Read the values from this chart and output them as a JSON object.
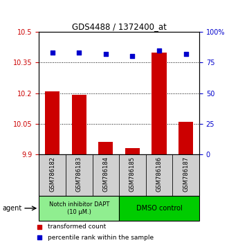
{
  "title": "GDS4488 / 1372400_at",
  "samples": [
    "GSM786182",
    "GSM786183",
    "GSM786184",
    "GSM786185",
    "GSM786186",
    "GSM786187"
  ],
  "bar_values": [
    10.21,
    10.19,
    9.96,
    9.93,
    10.4,
    10.06
  ],
  "dot_values": [
    83,
    83,
    82,
    80,
    85,
    82
  ],
  "ylim_left": [
    9.9,
    10.5
  ],
  "ylim_right": [
    0,
    100
  ],
  "yticks_left": [
    9.9,
    10.05,
    10.2,
    10.35,
    10.5
  ],
  "ytick_labels_left": [
    "9.9",
    "10.05",
    "10.2",
    "10.35",
    "10.5"
  ],
  "yticks_right": [
    0,
    25,
    50,
    75,
    100
  ],
  "ytick_labels_right": [
    "0",
    "25",
    "50",
    "75",
    "100%"
  ],
  "hlines": [
    10.05,
    10.2,
    10.35
  ],
  "bar_color": "#cc0000",
  "dot_color": "#0000cc",
  "bar_bottom": 9.9,
  "group0_label": "Notch inhibitor DAPT\n(10 μM.)",
  "group1_label": "DMSO control",
  "group0_color": "#90ee90",
  "group1_color": "#00cc00",
  "agent_label": "agent",
  "legend_bar_label": "transformed count",
  "legend_dot_label": "percentile rank within the sample",
  "left_tick_color": "#cc0000",
  "right_tick_color": "#0000cc"
}
